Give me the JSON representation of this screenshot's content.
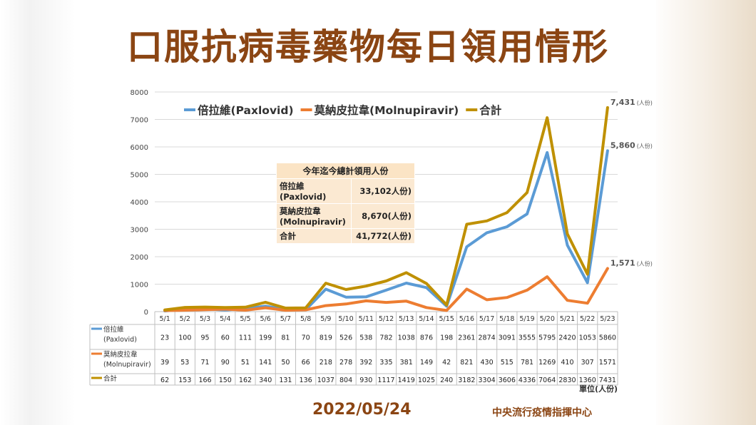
{
  "title": "口服抗病毒藥物每日領用情形",
  "footer": {
    "date": "2022/05/24",
    "organization": "中央流行疫情指揮中心",
    "unit": "單位(人份)"
  },
  "summary_box": {
    "title": "今年迄今總計領用人份",
    "rows": [
      {
        "label": "倍拉維\n(Paxlovid)",
        "value": "33,102人份)"
      },
      {
        "label": "莫納皮拉韋\n(Molnupiravir)",
        "value": "8,670(人份)"
      },
      {
        "label": "合計",
        "value": "41,772(人份)"
      }
    ]
  },
  "colors": {
    "paxlovid": "#5b9bd5",
    "molnupiravir": "#ed7d31",
    "total": "#bf9000",
    "title": "#8b4513"
  },
  "chart_data": {
    "type": "line",
    "title": "",
    "xlabel": "",
    "ylabel": "",
    "ylim": [
      0,
      8000
    ],
    "yticks": [
      0,
      1000,
      2000,
      3000,
      4000,
      5000,
      6000,
      7000,
      8000
    ],
    "grid": true,
    "legend_position": "top",
    "categories": [
      "5/1",
      "5/2",
      "5/3",
      "5/4",
      "5/5",
      "5/6",
      "5/7",
      "5/8",
      "5/9",
      "5/10",
      "5/11",
      "5/12",
      "5/13",
      "5/14",
      "5/15",
      "5/16",
      "5/17",
      "5/18",
      "5/19",
      "5/20",
      "5/21",
      "5/22",
      "5/23"
    ],
    "series": [
      {
        "name": "倍拉維(Paxlovid)",
        "table_label": "倍拉維\n(Paxlovid)",
        "color": "#5b9bd5",
        "values": [
          23,
          100,
          95,
          60,
          111,
          199,
          81,
          70,
          819,
          526,
          538,
          782,
          1038,
          876,
          198,
          2361,
          2874,
          3091,
          3555,
          5795,
          2420,
          1053,
          5860
        ],
        "end_label": "5,860",
        "end_unit": "(人份)"
      },
      {
        "name": "莫納皮拉韋(Molnupiravir)",
        "table_label": "莫納皮拉韋\n(Molnupiravir)",
        "color": "#ed7d31",
        "values": [
          39,
          53,
          71,
          90,
          51,
          141,
          50,
          66,
          218,
          278,
          392,
          335,
          381,
          149,
          42,
          821,
          430,
          515,
          781,
          1269,
          410,
          307,
          1571
        ],
        "end_label": "1,571",
        "end_unit": "(人份)"
      },
      {
        "name": "合計",
        "table_label": "合計",
        "color": "#bf9000",
        "values": [
          62,
          153,
          166,
          150,
          162,
          340,
          131,
          136,
          1037,
          804,
          930,
          1117,
          1419,
          1025,
          240,
          3182,
          3304,
          3606,
          4336,
          7064,
          2830,
          1360,
          7431
        ],
        "end_label": "7,431",
        "end_unit": "(人份)"
      }
    ]
  }
}
